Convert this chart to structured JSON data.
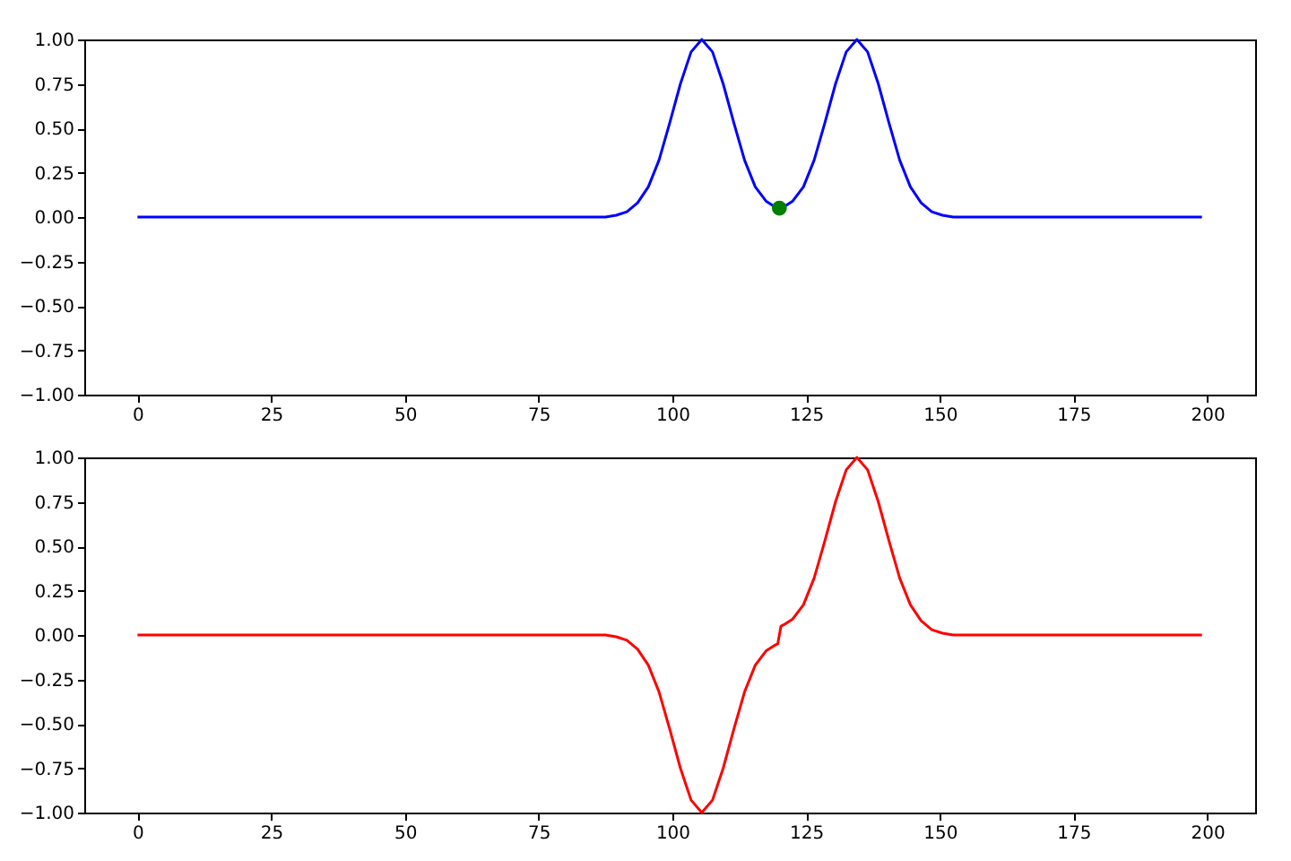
{
  "chart_data": [
    {
      "type": "line",
      "xlim": [
        -9.95,
        208.95
      ],
      "xticks": [
        0,
        25,
        50,
        75,
        100,
        125,
        150,
        175,
        200
      ],
      "ylim": [
        -1,
        1
      ],
      "yticks": [
        {
          "value": -1,
          "label": "−1.00"
        },
        {
          "value": -0.75,
          "label": "−0.75"
        },
        {
          "value": -0.5,
          "label": "−0.50"
        },
        {
          "value": -0.25,
          "label": "−0.25"
        },
        {
          "value": 0,
          "label": "0.00"
        },
        {
          "value": 0.25,
          "label": "0.25"
        },
        {
          "value": 0.5,
          "label": "0.50"
        },
        {
          "value": 0.75,
          "label": "0.75"
        },
        {
          "value": 1,
          "label": "1.00"
        }
      ],
      "grid": false,
      "series": [
        {
          "type": "line",
          "color": "#0000ff",
          "x": [
            0,
            80,
            85.5,
            87.5,
            89.5,
            91.5,
            93.5,
            95.5,
            97.5,
            99.5,
            101.5,
            103.5,
            105.5,
            107.5,
            109.5,
            111.5,
            113.5,
            115.5,
            117.5,
            119,
            120,
            121,
            122.5,
            124.5,
            126.5,
            128.5,
            130.5,
            132.5,
            134.5,
            136.5,
            138.5,
            140.5,
            142.5,
            144.5,
            146.5,
            148.5,
            150.5,
            152.5,
            154.5,
            160,
            199
          ],
          "values": [
            0,
            0,
            0,
            0,
            0.01,
            0.03,
            0.08,
            0.17,
            0.32,
            0.53,
            0.75,
            0.93,
            1,
            0.93,
            0.75,
            0.53,
            0.32,
            0.17,
            0.09,
            0.06,
            0.05,
            0.06,
            0.09,
            0.17,
            0.32,
            0.53,
            0.75,
            0.93,
            1,
            0.93,
            0.75,
            0.53,
            0.32,
            0.17,
            0.08,
            0.03,
            0.01,
            0,
            0,
            0,
            0
          ]
        },
        {
          "type": "scatter",
          "color": "#008000",
          "marker": "circle",
          "x": [
            120
          ],
          "values": [
            0.05
          ]
        }
      ]
    },
    {
      "type": "line",
      "xlim": [
        -9.95,
        208.95
      ],
      "xticks": [
        0,
        25,
        50,
        75,
        100,
        125,
        150,
        175,
        200
      ],
      "ylim": [
        -1,
        1
      ],
      "yticks": [
        {
          "value": -1,
          "label": "−1.00"
        },
        {
          "value": -0.75,
          "label": "−0.75"
        },
        {
          "value": -0.5,
          "label": "−0.50"
        },
        {
          "value": -0.25,
          "label": "−0.25"
        },
        {
          "value": 0,
          "label": "0.00"
        },
        {
          "value": 0.25,
          "label": "0.25"
        },
        {
          "value": 0.5,
          "label": "0.50"
        },
        {
          "value": 0.75,
          "label": "0.75"
        },
        {
          "value": 1,
          "label": "1.00"
        }
      ],
      "grid": false,
      "series": [
        {
          "type": "line",
          "color": "#ff0000",
          "x": [
            0,
            80,
            85.5,
            87.5,
            89.5,
            91.5,
            93.5,
            95.5,
            97.5,
            99.5,
            101.5,
            103.5,
            105.5,
            107.5,
            109.5,
            111.5,
            113.5,
            115.5,
            117.5,
            119,
            119.7,
            120.3,
            121,
            122.5,
            124.5,
            126.5,
            128.5,
            130.5,
            132.5,
            134.5,
            136.5,
            138.5,
            140.5,
            142.5,
            144.5,
            146.5,
            148.5,
            150.5,
            152.5,
            154.5,
            160,
            199
          ],
          "values": [
            0,
            0,
            0,
            0,
            -0.01,
            -0.03,
            -0.08,
            -0.17,
            -0.32,
            -0.53,
            -0.75,
            -0.93,
            -1,
            -0.93,
            -0.75,
            -0.53,
            -0.32,
            -0.17,
            -0.09,
            -0.06,
            -0.05,
            0.05,
            0.06,
            0.09,
            0.17,
            0.32,
            0.53,
            0.75,
            0.93,
            1,
            0.93,
            0.75,
            0.53,
            0.32,
            0.17,
            0.08,
            0.03,
            0.01,
            0,
            0,
            0,
            0
          ]
        }
      ]
    }
  ]
}
